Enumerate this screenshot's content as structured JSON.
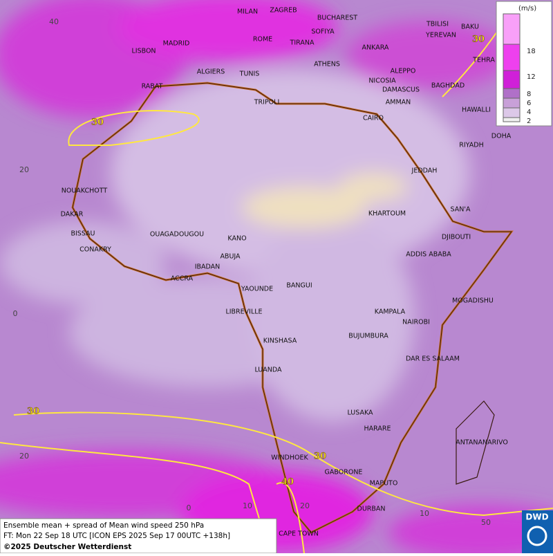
{
  "legend": {
    "unit": "(m/s)",
    "labels": [
      18,
      12,
      8,
      6,
      4,
      2
    ]
  },
  "cities": [
    "MILAN",
    "ZAGREB",
    "BUCHAREST",
    "TBILISI",
    "LISBON",
    "MADRID",
    "ROME",
    "SOFIYA",
    "YEREVAN",
    "BAKU",
    "TIRANA",
    "ANKARA",
    "TEHRA",
    "ALGIERS",
    "TUNIS",
    "ATHENS",
    "ALEPPO",
    "RABAT",
    "NICOSIA",
    "BAGHDAD",
    "DAMASCUS",
    "AMMAN",
    "TRIPOLI",
    "HAWALLI",
    "CAIRO",
    "DOHA",
    "RIYADH",
    "JEDDAH",
    "NOUAKCHOTT",
    "SAN'A",
    "DAKAR",
    "KHARTOUM",
    "BISSAU",
    "OUAGADOUGOU",
    "KANO",
    "DJIBOUTI",
    "CONAKRY",
    "ABUJA",
    "ADDIS ABABA",
    "IBADAN",
    "ACCRA",
    "YAOUNDE",
    "BANGUI",
    "MOGADISHU",
    "LIBREVILLE",
    "KAMPALA",
    "NAIROBI",
    "KINSHASA",
    "BUJUMBURA",
    "DAR ES SALAAM",
    "LUANDA",
    "LUSAKA",
    "HARARE",
    "ANTANANARIVO",
    "WINDHOEK",
    "GABORONE",
    "MAPUTO",
    "DURBAN",
    "CAPE TOWN"
  ],
  "grid_labels": [
    40,
    20,
    0,
    20,
    0,
    10,
    20,
    10,
    50
  ],
  "contour_labels": [
    30,
    30,
    30,
    30,
    40
  ],
  "caption": {
    "line1": "Ensemble mean + spread of Mean wind speed 250 hPa",
    "line2": "FT: Mon 22 Sep 18 UTC [ICON EPS 2025 Sep 17 00UTC +138h]",
    "line3": "©2025 Deutscher Wetterdienst"
  },
  "logo": "DWD"
}
